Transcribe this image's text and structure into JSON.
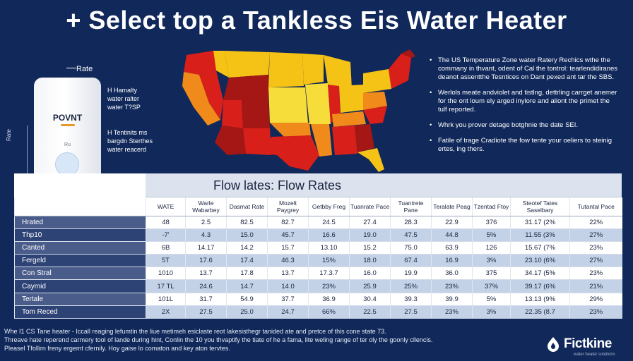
{
  "title": "+ Select top a Tankless Eis Water Heater",
  "device": {
    "rate_label": "Rate",
    "brand": "POVNT",
    "small_label": "Ru",
    "side_label": "Rate",
    "callout_1": "H Hamalty water ralter water T?SP",
    "callout_2": "H Tentinits ms bargdn Sterthes water reacerd"
  },
  "map": {
    "colors": {
      "red": "#d91f1a",
      "dark_red": "#a51714",
      "orange": "#f08a1b",
      "yellow": "#f5c315",
      "light_yellow": "#f7dd3a"
    }
  },
  "bullets": [
    "The US Temperature Zone water Ratery Rechics wthe the commany in thvant, odent of Cal the tontrol: tearlendidiranes deanot assentthe Tesntices on Dant pexed ant tar the SBS.",
    "Werlols meate andviolet and tistlng, dettrling carrget anemer for the ont loum ely arged inylore and aliont the primet the tulf reported.",
    "Whrk you prover detage botghnie the date SEI.",
    "Fatile of trage Cradiote the fow tente your oeliers to steinig ertes, ing thers."
  ],
  "table": {
    "title": "Flow lates: Flow Rates",
    "columns": [
      "WATE",
      "Warle Wabarbey",
      "Dasmat Rate",
      "Mozelt Paygrey",
      "Getbby Freg",
      "Tuanrate Pace",
      "Tuantrete Pane",
      "Teralate Peag",
      "Tzentad Ftoy",
      "Steotef Tates Saselbary",
      "Tutantal Pace"
    ],
    "rows": [
      {
        "label": "Hrated",
        "cells": [
          "48",
          "2.5",
          "82.5",
          "82.7",
          "24.5",
          "27.4",
          "28.3",
          "22.9",
          "376",
          "31.17  (2%",
          "22%"
        ]
      },
      {
        "label": "Thp10",
        "cells": [
          "-7'",
          "4.3",
          "15.0",
          "45.7",
          "16.6",
          "19.0",
          "47.5",
          "44.8",
          "5%",
          "11.55  (3%",
          "27%"
        ]
      },
      {
        "label": "Canted",
        "cells": [
          "6B",
          "14.17",
          "14.2",
          "15.7",
          "13.10",
          "15.2",
          "75.0",
          "63.9",
          "126",
          "15.67  (7%",
          "23%"
        ]
      },
      {
        "label": "Fergeld",
        "cells": [
          "5T",
          "17.6",
          "17.4",
          "46.3",
          "15%",
          "18.0",
          "67.4",
          "16.9",
          "3%",
          "23.10  (6%",
          "27%"
        ]
      },
      {
        "label": "Con Stral",
        "cells": [
          "1010",
          "13.7",
          "17.8",
          "13.7",
          "17.3.7",
          "16.0",
          "19.9",
          "36.0",
          "375",
          "34.17  (5%",
          "23%"
        ]
      },
      {
        "label": "Caymid",
        "cells": [
          "17 TL",
          "24.6",
          "14.7",
          "14.0",
          "23%",
          "25.9",
          "25%",
          "23%",
          "37%",
          "39.17  (6%",
          "21%"
        ]
      },
      {
        "label": "Tertale",
        "cells": [
          "101L",
          "31.7",
          "54.9",
          "37.7",
          "36.9",
          "30.4",
          "39.3",
          "39.9",
          "5%",
          "13.13  (9%",
          "29%"
        ]
      },
      {
        "label": "Tom Reced",
        "cells": [
          "2X",
          "27.5",
          "25.0",
          "24.7",
          "66%",
          "22.5",
          "27.5",
          "23%",
          "3%",
          "22.35  (8.7",
          "23%"
        ]
      }
    ]
  },
  "footer": [
    "Whe I1 CS Tane heater - Iccall reaging lefumtin the liue metimeh esiclaste reot lakesisthegr tanided ate and pretce of this cone state 73.",
    "Threave hate reperend carmery tool of lande during hint, Conlin the 10 you thvaptify the tiate of he a fama, lite weling range of ter oly the goonly cllencis.",
    "Pleasel Tfollirn freny ergemt cfernily. Hoy gaise lo comaton and key aton tervtes."
  ],
  "logo": {
    "name": "Fictkine",
    "tagline": "water heater solutions"
  }
}
